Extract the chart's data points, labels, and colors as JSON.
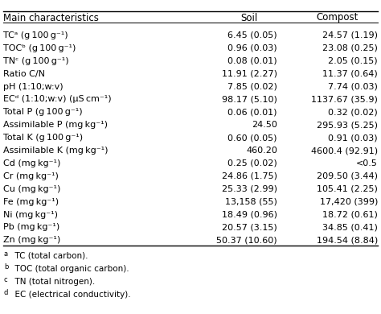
{
  "headers": [
    "Main characteristics",
    "Soil",
    "Compost"
  ],
  "rows": [
    [
      "TCᵃ (g 100 g⁻¹)",
      "6.45 (0.05)",
      "24.57 (1.19)"
    ],
    [
      "TOCᵇ (g 100 g⁻¹)",
      "0.96 (0.03)",
      "23.08 (0.25)"
    ],
    [
      "TNᶜ (g 100 g⁻¹)",
      "0.08 (0.01)",
      "2.05 (0.15)"
    ],
    [
      "Ratio C/N",
      "11.91 (2.27)",
      "11.37 (0.64)"
    ],
    [
      "pH (1:10;w:v)",
      "7.85 (0.02)",
      "7.74 (0.03)"
    ],
    [
      "ECᵈ (1:10;w:v) (μS cm⁻¹)",
      "98.17 (5.10)",
      "1137.67 (35.9)"
    ],
    [
      "Total P (g 100 g⁻¹)",
      "0.06 (0.01)",
      "0.32 (0.02)"
    ],
    [
      "Assimilable P (mg kg⁻¹)",
      "24.50",
      "295.93 (5.25)"
    ],
    [
      "Total K (g 100 g⁻¹)",
      "0.60 (0.05)",
      "0.91 (0.03)"
    ],
    [
      "Assimilable K (mg kg⁻¹)",
      "460.20",
      "4600.4 (92.91)"
    ],
    [
      "Cd (mg kg⁻¹)",
      "0.25 (0.02)",
      "<0.5"
    ],
    [
      "Cr (mg kg⁻¹)",
      "24.86 (1.75)",
      "209.50 (3.44)"
    ],
    [
      "Cu (mg kg⁻¹)",
      "25.33 (2.99)",
      "105.41 (2.25)"
    ],
    [
      "Fe (mg kg⁻¹)",
      "13,158 (55)",
      "17,420 (399)"
    ],
    [
      "Ni (mg kg⁻¹)",
      "18.49 (0.96)",
      "18.72 (0.61)"
    ],
    [
      "Pb (mg kg⁻¹)",
      "20.57 (3.15)",
      "34.85 (0.41)"
    ],
    [
      "Zn (mg kg⁻¹)",
      "50.37 (10.60)",
      "194.54 (8.84)"
    ]
  ],
  "footnotes": [
    "a   TC (total carbon).",
    "b   TOC (total organic carbon).",
    "c   TN (total nitrogen).",
    "d   EC (electrical conductivity)."
  ],
  "footnote_supers": [
    "a",
    "b",
    "c",
    "d"
  ],
  "footnote_texts": [
    "  TC (total carbon).",
    "  TOC (total organic carbon).",
    "  TN (total nitrogen).",
    "  EC (electrical conductivity)."
  ],
  "bg_color": "#ffffff",
  "text_color": "#000000",
  "header_fontsize": 8.5,
  "row_fontsize": 8.0,
  "footnote_fontsize": 7.5
}
